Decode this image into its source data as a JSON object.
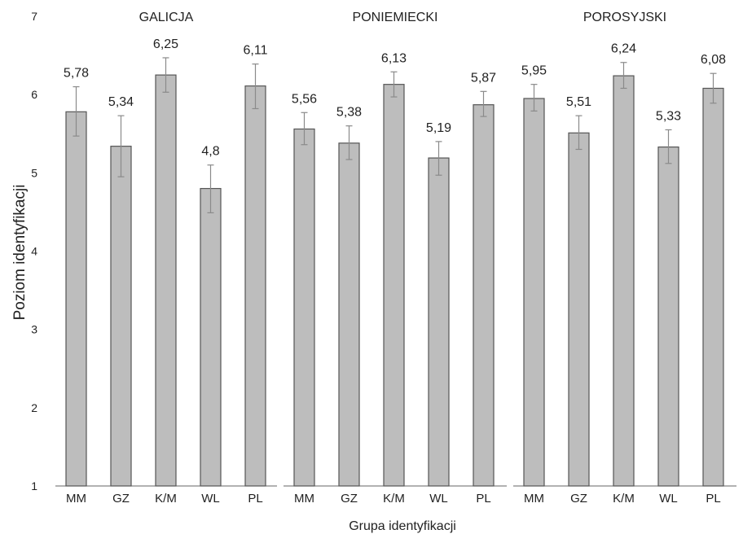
{
  "chart_data": {
    "type": "bar",
    "ylabel": "Poziom identyfikacji",
    "xlabel": "Grupa identyfikacji",
    "ylim": [
      1,
      7
    ],
    "yticks": [
      "1",
      "2",
      "3",
      "4",
      "5",
      "6",
      "7"
    ],
    "grid": false,
    "colors": {
      "bar": "#bdbdbd",
      "bar_edge": "#555555",
      "error_bar": "#8a8a8a"
    },
    "panels": [
      {
        "title": "GALICJA",
        "categories": [
          "MM",
          "GZ",
          "K/M",
          "WL",
          "PL"
        ],
        "values": [
          5.78,
          5.34,
          6.25,
          4.8,
          6.11
        ],
        "value_labels": [
          "5,78",
          "5,34",
          "6,25",
          "4,8",
          "6,11"
        ],
        "error_low": [
          5.47,
          4.95,
          6.03,
          4.49,
          5.82
        ],
        "error_high": [
          6.1,
          5.73,
          6.47,
          5.1,
          6.39
        ]
      },
      {
        "title": "PONIEMIECKI",
        "categories": [
          "MM",
          "GZ",
          "K/M",
          "WL",
          "PL"
        ],
        "values": [
          5.56,
          5.38,
          6.13,
          5.19,
          5.87
        ],
        "value_labels": [
          "5,56",
          "5,38",
          "6,13",
          "5,19",
          "5,87"
        ],
        "error_low": [
          5.36,
          5.17,
          5.97,
          4.97,
          5.72
        ],
        "error_high": [
          5.77,
          5.6,
          6.29,
          5.4,
          6.04
        ]
      },
      {
        "title": "POROSYJSKI",
        "categories": [
          "MM",
          "GZ",
          "K/M",
          "WL",
          "PL"
        ],
        "values": [
          5.95,
          5.51,
          6.24,
          5.33,
          6.08
        ],
        "value_labels": [
          "5,95",
          "5,51",
          "6,24",
          "5,33",
          "6,08"
        ],
        "error_low": [
          5.79,
          5.3,
          6.08,
          5.12,
          5.89
        ],
        "error_high": [
          6.13,
          5.73,
          6.41,
          5.55,
          6.27
        ]
      }
    ]
  }
}
